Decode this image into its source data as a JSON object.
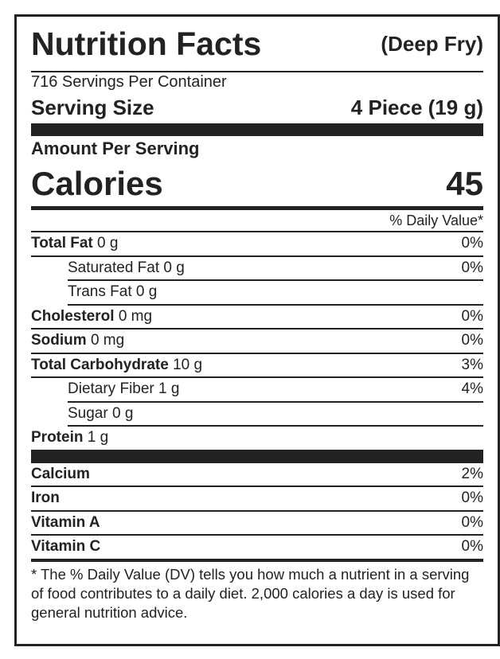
{
  "header": {
    "title": "Nutrition Facts",
    "variant": "(Deep Fry)"
  },
  "servings_per_container": "716 Servings Per Container",
  "serving_size": {
    "label": "Serving Size",
    "value": "4 Piece (19 g)"
  },
  "amount_per_serving": "Amount Per Serving",
  "calories": {
    "label": "Calories",
    "value": 45
  },
  "daily_value_header": "% Daily Value*",
  "nutrients": [
    {
      "name": "Total Fat",
      "amount": "0 g",
      "dv": "0%",
      "indent": false
    },
    {
      "name": "Saturated Fat",
      "amount": "0 g",
      "dv": "0%",
      "indent": true
    },
    {
      "name": "Trans Fat",
      "amount": "0 g",
      "indent": true
    },
    {
      "name": "Cholesterol",
      "amount": "0 mg",
      "dv": "0%",
      "indent": false
    },
    {
      "name": "Sodium",
      "amount": "0 mg",
      "dv": "0%",
      "indent": false
    },
    {
      "name": "Total Carbohydrate",
      "amount": "10 g",
      "dv": "3%",
      "indent": false
    },
    {
      "name": "Dietary Fiber",
      "amount": "1 g",
      "dv": "4%",
      "indent": true
    },
    {
      "name": "Sugar",
      "amount": "0 g",
      "indent": true
    },
    {
      "name": "Protein",
      "amount": "1 g",
      "indent": false
    }
  ],
  "vitamins": [
    {
      "name": "Calcium",
      "dv": "2%"
    },
    {
      "name": "Iron",
      "dv": "0%"
    },
    {
      "name": "Vitamin A",
      "dv": "0%"
    },
    {
      "name": "Vitamin C",
      "dv": "0%"
    }
  ],
  "footnote": "* The % Daily Value (DV) tells you how much a nutrient in a serving of food contributes to a daily diet. 2,000 calories a day is used for general nutrition advice."
}
